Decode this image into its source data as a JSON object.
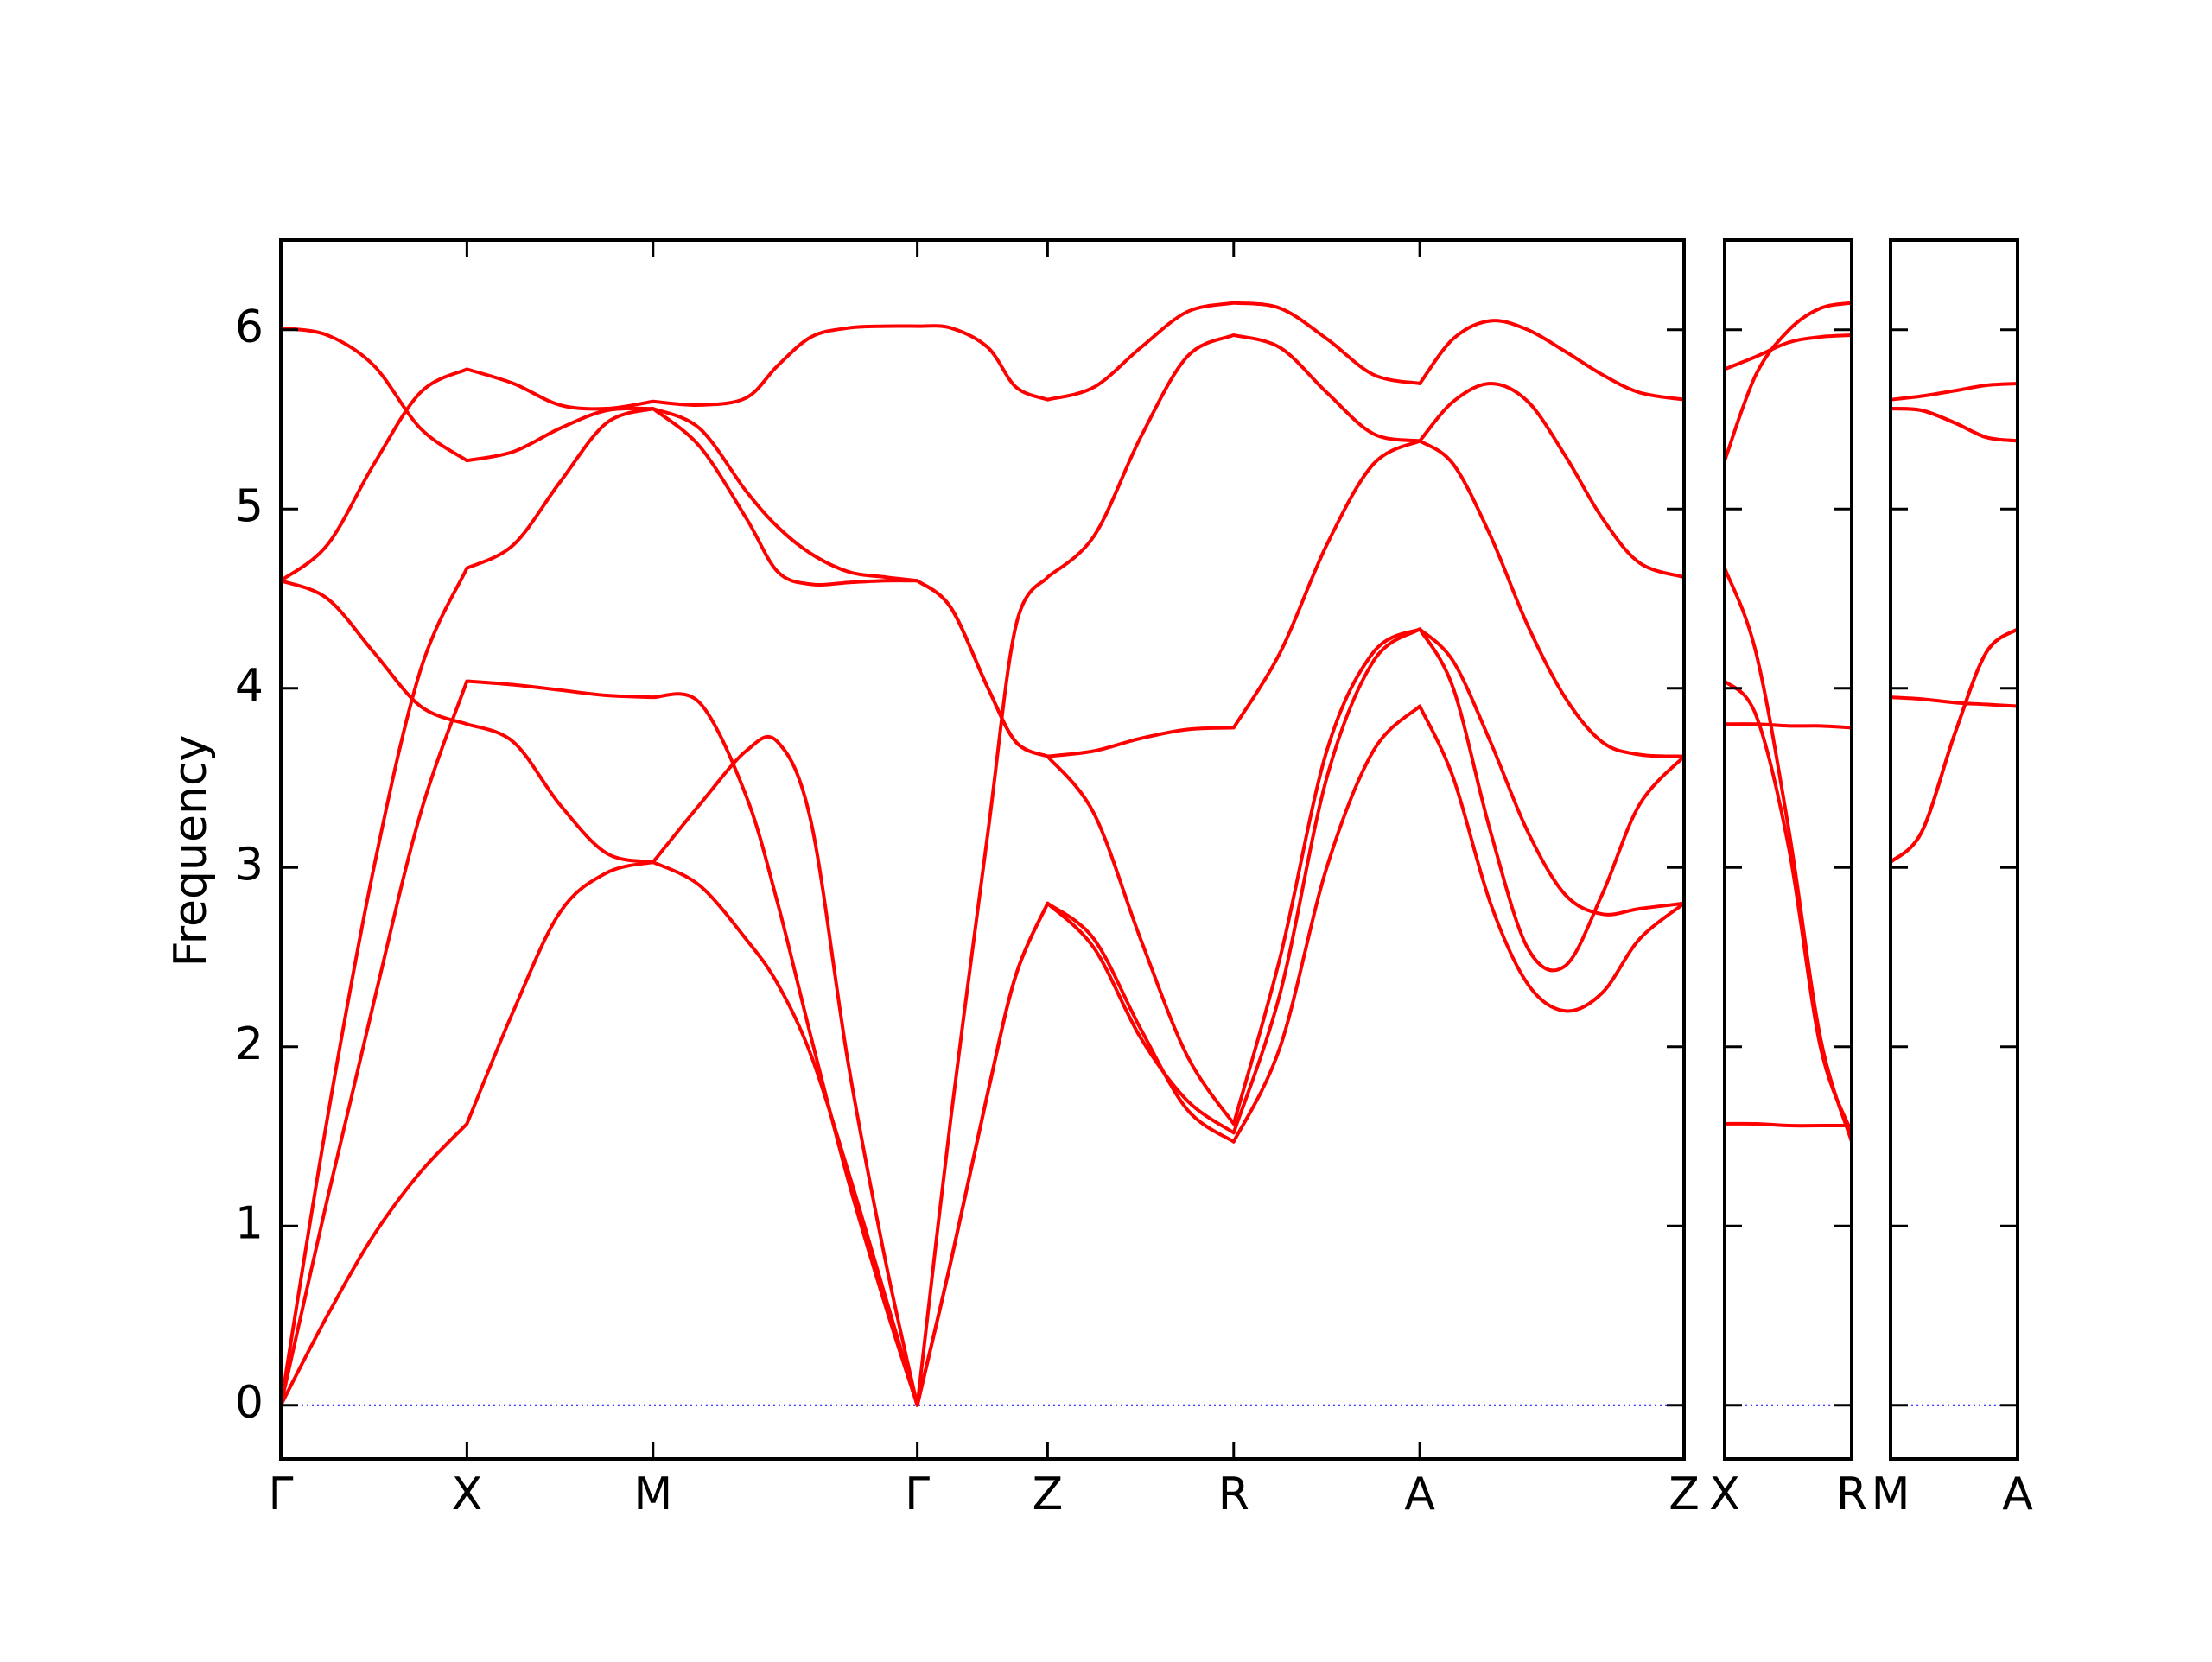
{
  "chart_data": [
    {
      "type": "line",
      "ylabel": "Frequency",
      "ylim": [
        -0.3,
        6.5
      ],
      "yticks": [
        0,
        1,
        2,
        3,
        4,
        5,
        6
      ],
      "xlim": [
        0,
        7.54
      ],
      "xticks": [
        {
          "value": 0,
          "label": "Γ"
        },
        {
          "value": 1,
          "label": "X"
        },
        {
          "value": 2,
          "label": "M"
        },
        {
          "value": 3.42,
          "label": "Γ"
        },
        {
          "value": 4.12,
          "label": "Z"
        },
        {
          "value": 5.12,
          "label": "R"
        },
        {
          "value": 6.12,
          "label": "A"
        },
        {
          "value": 7.54,
          "label": "Z"
        }
      ],
      "hline": 0,
      "hline_color": "#0000ff",
      "x": [
        0,
        0.25,
        0.5,
        0.75,
        1,
        1.25,
        1.5,
        1.75,
        2,
        2.25,
        2.5,
        2.67,
        2.85,
        3.05,
        3.25,
        3.42,
        3.6,
        3.8,
        3.95,
        4.12,
        4.37,
        4.62,
        4.87,
        5.12,
        5.37,
        5.62,
        5.87,
        6.12,
        6.3,
        6.5,
        6.7,
        6.9,
        7.1,
        7.3,
        7.54
      ],
      "series": [
        {
          "color": "#ff0000",
          "values": [
            0,
            0.5,
            0.95,
            1.3,
            1.57,
            2.2,
            2.75,
            2.97,
            3.03,
            2.9,
            2.6,
            2.35,
            1.95,
            1.3,
            0.6,
            0,
            0.8,
            1.75,
            2.4,
            2.8,
            2.6,
            2.1,
            1.65,
            1.47,
            2.0,
            3.0,
            3.65,
            3.9,
            3.5,
            2.8,
            2.35,
            2.2,
            2.3,
            2.6,
            2.8
          ]
        },
        {
          "color": "#ff0000",
          "values": [
            0,
            1.15,
            2.25,
            3.3,
            4.04,
            4.02,
            3.99,
            3.96,
            3.95,
            3.92,
            3.4,
            2.8,
            2.05,
            1.25,
            0.55,
            0,
            0.8,
            1.75,
            2.4,
            2.8,
            2.55,
            2.05,
            1.7,
            1.52,
            2.3,
            3.5,
            4.15,
            4.33,
            4.0,
            3.2,
            2.55,
            2.45,
            2.85,
            3.35,
            3.62
          ]
        },
        {
          "color": "#ff0000",
          "values": [
            0,
            1.6,
            3.0,
            4.1,
            4.67,
            4.8,
            5.15,
            5.48,
            5.56,
            5.35,
            4.95,
            4.65,
            4.58,
            4.59,
            4.6,
            4.6,
            4.45,
            4.0,
            3.7,
            3.62,
            3.3,
            2.6,
            1.95,
            1.57,
            2.5,
            3.65,
            4.2,
            4.33,
            4.15,
            3.7,
            3.2,
            2.85,
            2.74,
            2.77,
            2.8
          ]
        },
        {
          "color": "#ff0000",
          "values": [
            4.6,
            4.8,
            5.25,
            5.65,
            5.78,
            5.7,
            5.58,
            5.56,
            5.6,
            5.58,
            5.62,
            5.8,
            5.96,
            6.01,
            6.02,
            6.02,
            6.01,
            5.9,
            5.68,
            5.61,
            5.68,
            5.9,
            6.1,
            6.15,
            6.12,
            5.95,
            5.75,
            5.7,
            5.95,
            6.05,
            6.0,
            5.88,
            5.75,
            5.65,
            5.61
          ]
        },
        {
          "color": "#ff0000",
          "values": [
            4.6,
            4.5,
            4.2,
            3.9,
            3.8,
            3.7,
            3.35,
            3.08,
            3.03,
            3.35,
            3.65,
            3.7,
            3.25,
            1.9,
            0.8,
            0,
            1.6,
            3.2,
            4.35,
            4.62,
            4.85,
            5.4,
            5.85,
            5.97,
            5.9,
            5.65,
            5.42,
            5.38,
            5.6,
            5.7,
            5.6,
            5.3,
            4.95,
            4.7,
            4.62
          ]
        },
        {
          "color": "#ff0000",
          "values": [
            6.01,
            5.97,
            5.8,
            5.45,
            5.27,
            5.32,
            5.45,
            5.55,
            5.56,
            5.45,
            5.1,
            4.9,
            4.75,
            4.65,
            4.62,
            4.6,
            4.45,
            4.0,
            3.7,
            3.62,
            3.65,
            3.72,
            3.77,
            3.78,
            4.2,
            4.8,
            5.25,
            5.38,
            5.25,
            4.85,
            4.35,
            3.95,
            3.7,
            3.63,
            3.62
          ]
        }
      ]
    },
    {
      "type": "line",
      "xlim": [
        0,
        0.69
      ],
      "xticks": [
        {
          "value": 0,
          "label": "X"
        },
        {
          "value": 0.69,
          "label": "R"
        }
      ],
      "hline": 0,
      "hline_color": "#0000ff",
      "x": [
        0,
        0.17,
        0.35,
        0.52,
        0.69
      ],
      "series": [
        {
          "color": "#ff0000",
          "values": [
            1.57,
            1.57,
            1.56,
            1.56,
            1.56
          ]
        },
        {
          "color": "#ff0000",
          "values": [
            4.04,
            3.85,
            3.1,
            2.0,
            1.52
          ]
        },
        {
          "color": "#ff0000",
          "values": [
            4.67,
            4.2,
            3.2,
            2.05,
            1.47
          ]
        },
        {
          "color": "#ff0000",
          "values": [
            5.78,
            5.85,
            5.93,
            5.96,
            5.97
          ]
        },
        {
          "color": "#ff0000",
          "values": [
            3.8,
            3.8,
            3.79,
            3.79,
            3.78
          ]
        },
        {
          "color": "#ff0000",
          "values": [
            5.27,
            5.75,
            6.0,
            6.12,
            6.15
          ]
        }
      ]
    },
    {
      "type": "line",
      "xlim": [
        0,
        0.69
      ],
      "xticks": [
        {
          "value": 0,
          "label": "M"
        },
        {
          "value": 0.69,
          "label": "A"
        }
      ],
      "hline": 0,
      "hline_color": "#0000ff",
      "x": [
        0,
        0.17,
        0.35,
        0.52,
        0.69
      ],
      "series": [
        {
          "color": "#ff0000",
          "values": [
            3.03,
            3.2,
            3.75,
            4.2,
            4.33
          ]
        },
        {
          "color": "#ff0000",
          "values": [
            3.95,
            3.94,
            3.92,
            3.91,
            3.9
          ]
        },
        {
          "color": "#ff0000",
          "values": [
            5.56,
            5.55,
            5.48,
            5.4,
            5.38
          ]
        },
        {
          "color": "#ff0000",
          "values": [
            5.61,
            5.63,
            5.66,
            5.69,
            5.7
          ]
        },
        {
          "color": "#ff0000",
          "values": [
            3.03,
            3.2,
            3.75,
            4.2,
            4.33
          ]
        },
        {
          "color": "#ff0000",
          "values": [
            5.56,
            5.55,
            5.48,
            5.4,
            5.38
          ]
        }
      ]
    }
  ]
}
